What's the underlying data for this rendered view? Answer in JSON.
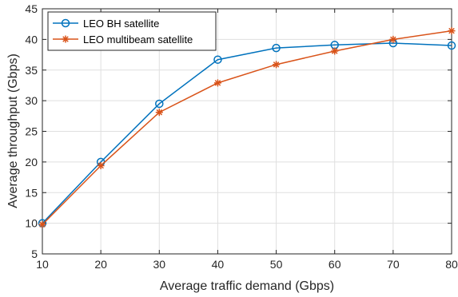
{
  "chart_data": {
    "type": "line",
    "xlabel": "Average traffic demand (Gbps)",
    "ylabel": "Average throughput (Gbps)",
    "xlim": [
      10,
      80
    ],
    "ylim": [
      5,
      45
    ],
    "xticks": [
      10,
      20,
      30,
      40,
      50,
      60,
      70,
      80
    ],
    "yticks": [
      5,
      10,
      15,
      20,
      25,
      30,
      35,
      40,
      45
    ],
    "grid": true,
    "legend_position": "top-left",
    "x": [
      10,
      20,
      30,
      40,
      50,
      60,
      70,
      80
    ],
    "series": [
      {
        "name": "LEO BH satellite",
        "values": [
          10.0,
          20.0,
          29.5,
          36.7,
          38.6,
          39.1,
          39.4,
          39.0
        ],
        "color": "#0072BD",
        "marker": "circle"
      },
      {
        "name": "LEO multibeam satellite",
        "values": [
          9.8,
          19.4,
          28.1,
          32.9,
          35.9,
          38.1,
          40.0,
          41.4
        ],
        "color": "#D95319",
        "marker": "asterisk"
      }
    ]
  }
}
